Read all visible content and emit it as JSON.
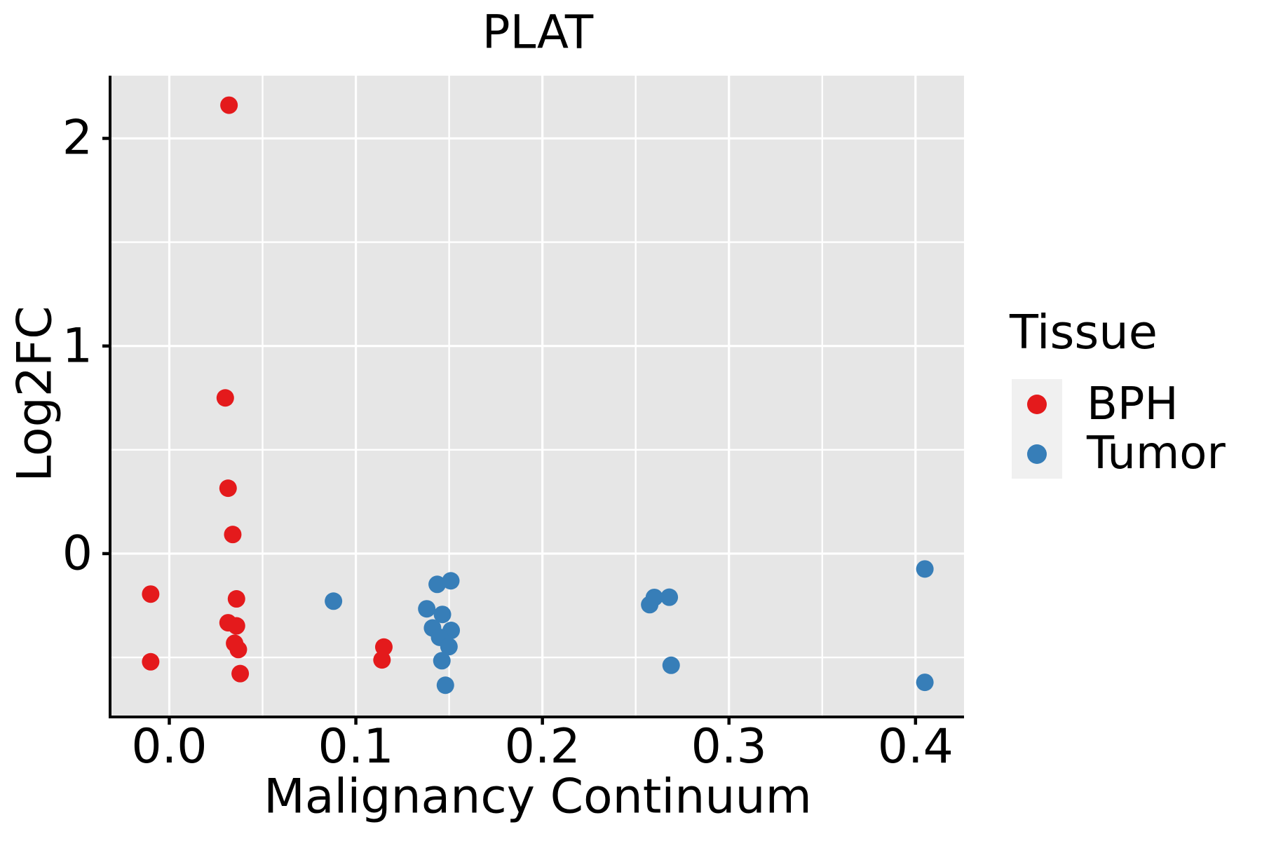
{
  "title": "PLAT",
  "legend": {
    "title": "Tissue",
    "items": [
      {
        "label": "BPH",
        "color": "#E41A1C"
      },
      {
        "label": "Tumor",
        "color": "#377EB8"
      }
    ]
  },
  "colors": {
    "panel_bg": "#E6E6E6",
    "grid": "#FFFFFF",
    "axis": "#000000",
    "text": "#000000",
    "legend_key_bg": "#F0F0F0"
  },
  "chart_data": {
    "type": "scatter",
    "title": "PLAT",
    "xlabel": "Malignancy Continuum",
    "ylabel": "Log2FC",
    "xlim": [
      -0.031,
      0.426
    ],
    "ylim": [
      -0.78,
      2.302
    ],
    "x_ticks": [
      0.0,
      0.1,
      0.2,
      0.3,
      0.4
    ],
    "x_tick_labels": [
      "0.0",
      "0.1",
      "0.2",
      "0.3",
      "0.4"
    ],
    "y_ticks": [
      0,
      1,
      2
    ],
    "y_tick_labels": [
      "0",
      "1",
      "2"
    ],
    "x_minor_ticks": [
      0.05,
      0.15,
      0.25,
      0.35
    ],
    "y_minor_ticks": [
      -0.5,
      0.5,
      1.5
    ],
    "grid": true,
    "legend_position": "right",
    "series": [
      {
        "name": "BPH",
        "color": "#E41A1C",
        "points": [
          [
            -0.01,
            -0.195
          ],
          [
            -0.01,
            -0.521
          ],
          [
            0.032,
            2.16
          ],
          [
            0.03,
            0.75
          ],
          [
            0.0315,
            0.315
          ],
          [
            0.034,
            0.092
          ],
          [
            0.036,
            -0.218
          ],
          [
            0.0315,
            -0.333
          ],
          [
            0.036,
            -0.348
          ],
          [
            0.035,
            -0.432
          ],
          [
            0.037,
            -0.462
          ],
          [
            0.038,
            -0.578
          ],
          [
            0.115,
            -0.45
          ],
          [
            0.114,
            -0.512
          ]
        ]
      },
      {
        "name": "Tumor",
        "color": "#377EB8",
        "points": [
          [
            0.088,
            -0.229
          ],
          [
            0.1436,
            -0.148
          ],
          [
            0.1509,
            -0.131
          ],
          [
            0.138,
            -0.266
          ],
          [
            0.1464,
            -0.293
          ],
          [
            0.1411,
            -0.358
          ],
          [
            0.1511,
            -0.37
          ],
          [
            0.1449,
            -0.403
          ],
          [
            0.1499,
            -0.448
          ],
          [
            0.1461,
            -0.516
          ],
          [
            0.148,
            -0.634
          ],
          [
            0.2575,
            -0.246
          ],
          [
            0.26,
            -0.211
          ],
          [
            0.268,
            -0.21
          ],
          [
            0.269,
            -0.538
          ],
          [
            0.405,
            -0.074
          ],
          [
            0.405,
            -0.62
          ]
        ]
      }
    ]
  }
}
